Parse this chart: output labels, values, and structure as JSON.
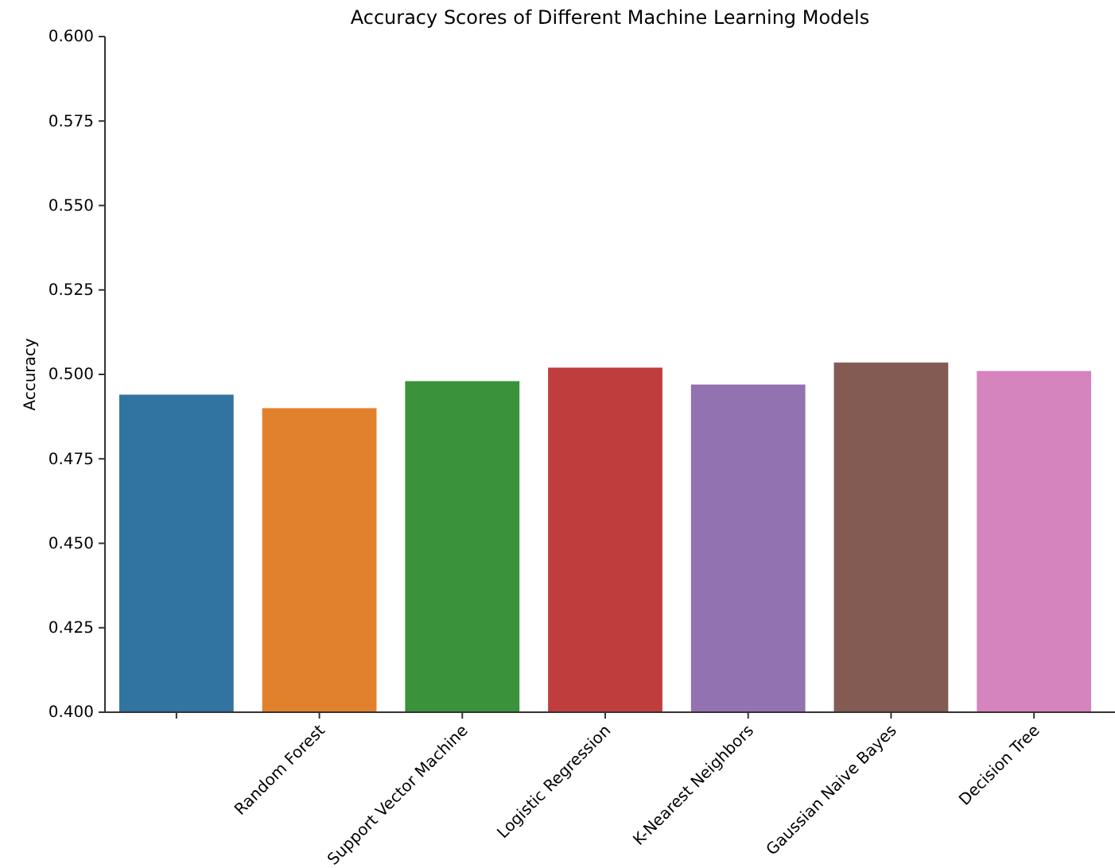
{
  "chart_data": {
    "type": "bar",
    "title": "Accuracy Scores of Different Machine Learning Models",
    "ylabel": "Accuracy",
    "categories": [
      null,
      "Random Forest",
      "Support Vector Machine",
      "Logistic Regression",
      "K-Nearest Neighbors",
      "Gaussian Naive Bayes",
      "Decision Tree"
    ],
    "values": [
      0.494,
      0.49,
      0.498,
      0.502,
      0.497,
      0.5035,
      0.501
    ],
    "colors": [
      "#3274a1",
      "#e1812c",
      "#3a923a",
      "#c03d3e",
      "#9372b2",
      "#845b53",
      "#d684bd"
    ],
    "ylim": [
      0.4,
      0.6
    ],
    "yticks": [
      {
        "value": 0.4,
        "label": "0.400"
      },
      0.425,
      {
        "value": 0.45,
        "label": "0.450"
      },
      0.475,
      {
        "value": 0.5,
        "label": "0.500"
      },
      0.525,
      {
        "value": 0.55,
        "label": "0.550"
      },
      0.575,
      {
        "value": 0.6,
        "label": "0.600"
      }
    ],
    "grid": false
  }
}
